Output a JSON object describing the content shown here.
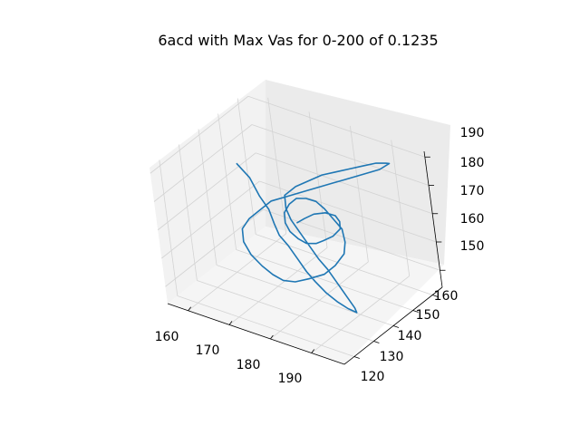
{
  "chart_data": {
    "type": "line",
    "projection": "3d",
    "title": "6acd with Max Vas for 0-200 of 0.1235",
    "xlabel": "",
    "ylabel": "",
    "zlabel": "",
    "x_ticks": [
      "160",
      "170",
      "180",
      "190"
    ],
    "y_ticks": [
      "120",
      "130",
      "140",
      "150",
      "160"
    ],
    "z_ticks": [
      "150",
      "160",
      "170",
      "180",
      "190"
    ],
    "xlim": [
      155,
      198
    ],
    "ylim": [
      115,
      165
    ],
    "zlim": [
      144,
      192
    ],
    "grid": true,
    "legend": "none",
    "series": [
      {
        "color": "#1f77b4",
        "values_approx": [
          [
            158,
            150,
            176
          ],
          [
            162,
            148,
            174
          ],
          [
            165,
            146,
            170
          ],
          [
            168,
            144,
            168
          ],
          [
            170,
            142,
            165
          ],
          [
            172,
            140,
            163
          ],
          [
            175,
            138,
            162
          ],
          [
            178,
            136,
            160
          ],
          [
            181,
            134,
            158
          ],
          [
            184,
            132,
            157
          ],
          [
            187,
            131,
            155
          ],
          [
            190,
            130,
            154
          ],
          [
            192,
            131,
            152
          ],
          [
            193,
            133,
            150
          ],
          [
            191,
            136,
            149
          ],
          [
            188,
            138,
            151
          ],
          [
            185,
            140,
            153
          ],
          [
            182,
            142,
            155
          ],
          [
            179,
            144,
            156
          ],
          [
            176,
            146,
            158
          ],
          [
            173,
            148,
            160
          ],
          [
            170,
            150,
            162
          ],
          [
            168,
            152,
            164
          ],
          [
            167,
            154,
            167
          ],
          [
            169,
            156,
            170
          ],
          [
            172,
            157,
            173
          ],
          [
            175,
            158,
            176
          ],
          [
            178,
            159,
            178
          ],
          [
            181,
            160,
            180
          ],
          [
            184,
            161,
            182
          ],
          [
            187,
            162,
            184
          ],
          [
            190,
            161,
            186
          ],
          [
            192,
            159,
            188
          ],
          [
            191,
            156,
            187
          ],
          [
            188,
            154,
            185
          ],
          [
            185,
            152,
            183
          ],
          [
            182,
            150,
            181
          ],
          [
            179,
            148,
            179
          ],
          [
            176,
            146,
            177
          ],
          [
            173,
            144,
            175
          ],
          [
            170,
            142,
            173
          ],
          [
            168,
            140,
            170
          ],
          [
            166,
            138,
            167
          ],
          [
            165,
            136,
            164
          ],
          [
            166,
            134,
            161
          ],
          [
            168,
            133,
            158
          ],
          [
            171,
            132,
            156
          ],
          [
            174,
            131,
            155
          ],
          [
            177,
            130,
            155
          ],
          [
            180,
            130,
            156
          ],
          [
            183,
            131,
            158
          ],
          [
            186,
            133,
            160
          ],
          [
            188,
            135,
            163
          ],
          [
            189,
            138,
            166
          ],
          [
            188,
            141,
            168
          ],
          [
            186,
            144,
            170
          ],
          [
            183,
            146,
            171
          ],
          [
            180,
            148,
            172
          ],
          [
            177,
            150,
            172
          ],
          [
            174,
            151,
            171
          ],
          [
            171,
            152,
            169
          ],
          [
            169,
            152,
            166
          ],
          [
            168,
            151,
            163
          ],
          [
            169,
            149,
            161
          ],
          [
            171,
            147,
            160
          ],
          [
            174,
            145,
            160
          ],
          [
            177,
            143,
            161
          ],
          [
            180,
            142,
            163
          ],
          [
            182,
            142,
            165
          ],
          [
            184,
            143,
            167
          ],
          [
            185,
            145,
            169
          ],
          [
            184,
            147,
            170
          ],
          [
            182,
            149,
            170
          ],
          [
            179,
            150,
            169
          ],
          [
            176,
            150,
            167
          ],
          [
            174,
            149,
            165
          ],
          [
            173,
            147,
            164
          ]
        ]
      }
    ]
  }
}
